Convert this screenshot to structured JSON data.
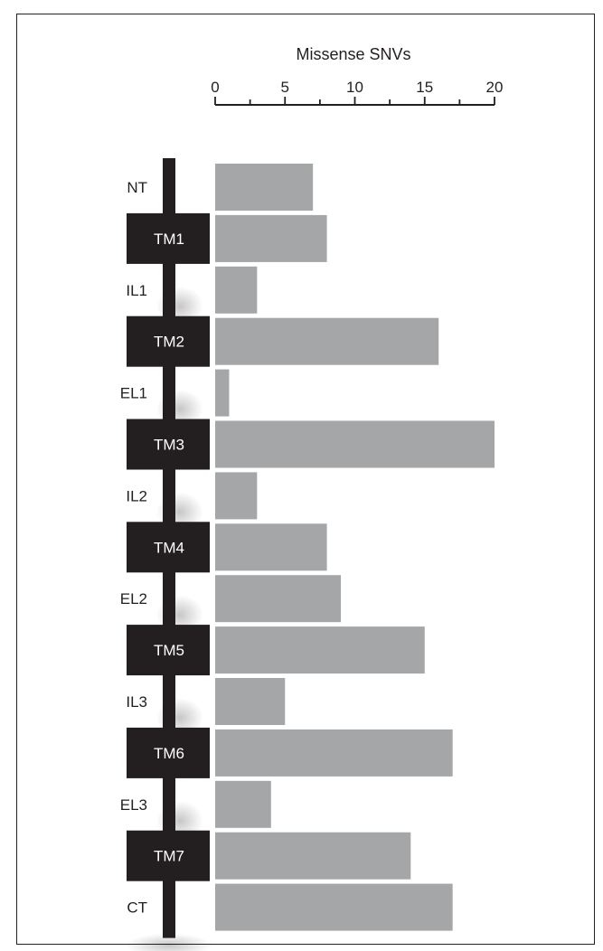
{
  "chart_data": {
    "type": "bar",
    "orientation": "horizontal",
    "title": "",
    "xlabel": "Missense SNVs",
    "ylabel": "",
    "xlim": [
      0,
      20
    ],
    "x_ticks": [
      "0",
      "5",
      "10",
      "15",
      "20"
    ],
    "x_axis_position": "top",
    "categories": [
      "NT",
      "TM1",
      "IL1",
      "TM2",
      "EL1",
      "TM3",
      "IL2",
      "TM4",
      "EL2",
      "TM5",
      "IL3",
      "TM6",
      "EL3",
      "TM7",
      "CT"
    ],
    "values": [
      7,
      8,
      3,
      16,
      1,
      20,
      3,
      8,
      9,
      15,
      5,
      17,
      4,
      14,
      17
    ],
    "transmembrane_domains": [
      "TM1",
      "TM2",
      "TM3",
      "TM4",
      "TM5",
      "TM6",
      "TM7"
    ],
    "bar_color": "#a5a6a8",
    "domain_box_color": "#231f20",
    "grid": false,
    "legend": "none"
  }
}
